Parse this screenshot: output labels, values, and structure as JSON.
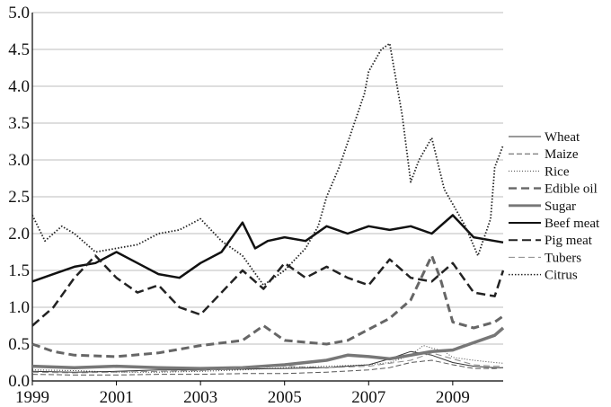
{
  "chart_data": {
    "type": "line",
    "title": "",
    "xlabel": "",
    "ylabel": "",
    "xlim": [
      1999,
      2010.2
    ],
    "ylim": [
      0.0,
      5.0
    ],
    "x_ticks": [
      1999,
      2001,
      2003,
      2005,
      2007,
      2009
    ],
    "x_tick_labels": [
      "1999",
      "2001",
      "2003",
      "2005",
      "2007",
      "2009"
    ],
    "y_ticks": [
      0.0,
      0.5,
      1.0,
      1.5,
      2.0,
      2.5,
      3.0,
      3.5,
      4.0,
      4.5,
      5.0
    ],
    "y_tick_labels": [
      "0.0",
      "0.5",
      "1.0",
      "1.5",
      "2.0",
      "2.5",
      "3.0",
      "3.5",
      "4.0",
      "4.5",
      "5.0"
    ],
    "grid": "horizontal",
    "legend_position": "right",
    "series": [
      {
        "name": "Wheat",
        "color": "#333333",
        "dash": "solid",
        "width": 1,
        "x": [
          1999,
          2000,
          2001,
          2002,
          2003,
          2004,
          2005,
          2006,
          2007,
          2007.5,
          2008,
          2008.5,
          2009,
          2009.5,
          2010,
          2010.2
        ],
        "y": [
          0.13,
          0.12,
          0.13,
          0.15,
          0.15,
          0.16,
          0.17,
          0.18,
          0.22,
          0.3,
          0.4,
          0.35,
          0.25,
          0.2,
          0.18,
          0.18
        ]
      },
      {
        "name": "Maize",
        "color": "#555555",
        "dash": "6,3",
        "width": 1,
        "x": [
          1999,
          2000,
          2001,
          2002,
          2003,
          2004,
          2005,
          2006,
          2007,
          2007.5,
          2008,
          2008.5,
          2009,
          2009.5,
          2010,
          2010.2
        ],
        "y": [
          0.09,
          0.08,
          0.08,
          0.09,
          0.09,
          0.1,
          0.1,
          0.12,
          0.15,
          0.18,
          0.25,
          0.28,
          0.22,
          0.17,
          0.17,
          0.18
        ]
      },
      {
        "name": "Rice",
        "color": "#444444",
        "dash": "1,2",
        "width": 1,
        "x": [
          1999,
          2000,
          2001,
          2002,
          2003,
          2004,
          2005,
          2006,
          2007,
          2007.5,
          2008,
          2008.3,
          2008.8,
          2009,
          2009.5,
          2010,
          2010.2
        ],
        "y": [
          0.15,
          0.14,
          0.12,
          0.12,
          0.13,
          0.15,
          0.18,
          0.2,
          0.22,
          0.25,
          0.35,
          0.48,
          0.4,
          0.32,
          0.28,
          0.25,
          0.24
        ]
      },
      {
        "name": "Edible oil",
        "color": "#666666",
        "dash": "9,5",
        "width": 3,
        "x": [
          1999,
          1999.5,
          2000,
          2001,
          2002,
          2003,
          2004,
          2004.5,
          2005,
          2006,
          2006.5,
          2007,
          2007.5,
          2008,
          2008.5,
          2008.7,
          2009,
          2009.5,
          2010,
          2010.2
        ],
        "y": [
          0.5,
          0.4,
          0.35,
          0.33,
          0.38,
          0.48,
          0.55,
          0.75,
          0.55,
          0.5,
          0.55,
          0.7,
          0.85,
          1.1,
          1.7,
          1.4,
          0.8,
          0.72,
          0.8,
          0.88
        ]
      },
      {
        "name": "Sugar",
        "color": "#777777",
        "dash": "solid",
        "width": 3.5,
        "x": [
          1999,
          2000,
          2001,
          2002,
          2003,
          2004,
          2005,
          2006,
          2006.5,
          2007,
          2007.5,
          2008,
          2008.5,
          2009,
          2009.5,
          2010,
          2010.2
        ],
        "y": [
          0.2,
          0.18,
          0.2,
          0.18,
          0.17,
          0.18,
          0.22,
          0.28,
          0.35,
          0.33,
          0.3,
          0.35,
          0.4,
          0.42,
          0.52,
          0.62,
          0.72
        ]
      },
      {
        "name": "Beef meat",
        "color": "#111111",
        "dash": "solid",
        "width": 2.5,
        "x": [
          1999,
          1999.5,
          2000,
          2000.5,
          2001,
          2001.5,
          2002,
          2002.5,
          2003,
          2003.5,
          2004,
          2004.3,
          2004.6,
          2005,
          2005.5,
          2006,
          2006.5,
          2007,
          2007.5,
          2008,
          2008.5,
          2009,
          2009.5,
          2010,
          2010.2
        ],
        "y": [
          1.35,
          1.45,
          1.55,
          1.6,
          1.75,
          1.6,
          1.45,
          1.4,
          1.6,
          1.75,
          2.15,
          1.8,
          1.9,
          1.95,
          1.9,
          2.1,
          2.0,
          2.1,
          2.05,
          2.1,
          2.0,
          2.25,
          1.95,
          1.9,
          1.88
        ]
      },
      {
        "name": "Pig meat",
        "color": "#222222",
        "dash": "10,5",
        "width": 2.5,
        "x": [
          1999,
          1999.5,
          2000,
          2000.5,
          2001,
          2001.5,
          2002,
          2002.5,
          2003,
          2003.5,
          2004,
          2004.5,
          2005,
          2005.5,
          2006,
          2006.5,
          2007,
          2007.5,
          2008,
          2008.5,
          2009,
          2009.5,
          2010,
          2010.2
        ],
        "y": [
          0.75,
          1.0,
          1.4,
          1.7,
          1.4,
          1.2,
          1.3,
          1.0,
          0.9,
          1.2,
          1.5,
          1.25,
          1.6,
          1.4,
          1.55,
          1.4,
          1.3,
          1.65,
          1.4,
          1.35,
          1.6,
          1.2,
          1.15,
          1.5
        ]
      },
      {
        "name": "Tubers",
        "color": "#888888",
        "dash": "7,4",
        "width": 1,
        "x": [
          1999,
          2000,
          2001,
          2002,
          2003,
          2004,
          2005,
          2006,
          2007,
          2008,
          2008.5,
          2009,
          2009.5,
          2010,
          2010.2
        ],
        "y": [
          0.12,
          0.11,
          0.12,
          0.13,
          0.14,
          0.18,
          0.2,
          0.18,
          0.2,
          0.28,
          0.38,
          0.3,
          0.22,
          0.2,
          0.2
        ]
      },
      {
        "name": "Citrus",
        "color": "#222222",
        "dash": "1.5,2",
        "width": 1.8,
        "x": [
          1999,
          1999.3,
          1999.7,
          2000,
          2000.5,
          2001,
          2001.5,
          2002,
          2002.5,
          2003,
          2003.5,
          2004,
          2004.5,
          2005,
          2005.5,
          2005.8,
          2006,
          2006.3,
          2006.6,
          2006.9,
          2007,
          2007.3,
          2007.5,
          2007.8,
          2008,
          2008.2,
          2008.5,
          2008.8,
          2009,
          2009.3,
          2009.6,
          2009.9,
          2010,
          2010.2
        ],
        "y": [
          2.25,
          1.9,
          2.1,
          2.0,
          1.75,
          1.8,
          1.85,
          2.0,
          2.05,
          2.2,
          1.9,
          1.7,
          1.3,
          1.5,
          1.8,
          2.1,
          2.5,
          2.9,
          3.4,
          3.9,
          4.2,
          4.5,
          4.58,
          3.6,
          2.7,
          3.0,
          3.3,
          2.6,
          2.4,
          2.1,
          1.7,
          2.2,
          2.9,
          3.2
        ]
      }
    ]
  }
}
